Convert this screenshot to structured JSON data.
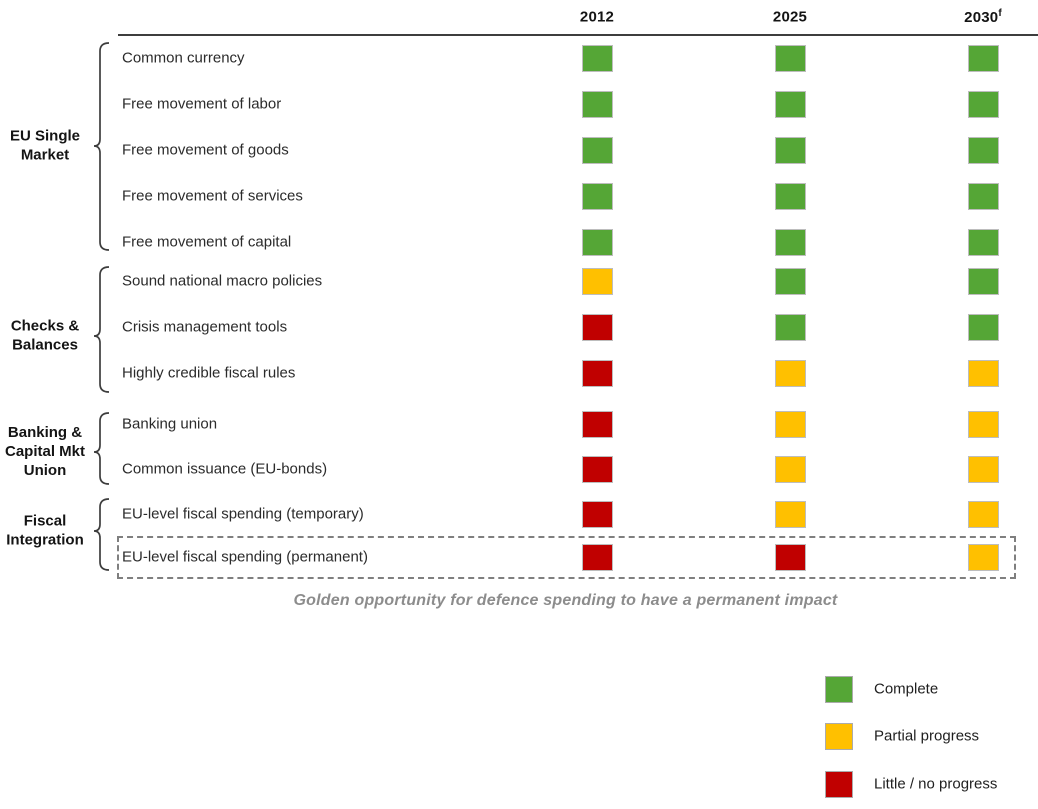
{
  "caption": "Golden opportunity for defence spending to have a permanent impact",
  "chart_data": {
    "type": "heatmap",
    "title": "",
    "columns": [
      {
        "text": "2012",
        "sup": ""
      },
      {
        "text": "2025",
        "sup": ""
      },
      {
        "text": "2030",
        "sup": "f"
      }
    ],
    "groups": [
      {
        "name": "EU Single Market",
        "label_lines": [
          "EU Single",
          "Market"
        ],
        "row_span": [
          0,
          4
        ]
      },
      {
        "name": "Checks & Balances",
        "label_lines": [
          "Checks &",
          "Balances"
        ],
        "row_span": [
          5,
          7
        ]
      },
      {
        "name": "Banking & Capital Mkt Union",
        "label_lines": [
          "Banking &",
          "Capital Mkt",
          "Union"
        ],
        "row_span": [
          8,
          9
        ]
      },
      {
        "name": "Fiscal Integration",
        "label_lines": [
          "Fiscal",
          "Integration"
        ],
        "row_span": [
          10,
          11
        ]
      }
    ],
    "rows": [
      {
        "label": "Common currency",
        "statuses": [
          "complete",
          "complete",
          "complete"
        ]
      },
      {
        "label": "Free movement of labor",
        "statuses": [
          "complete",
          "complete",
          "complete"
        ]
      },
      {
        "label": "Free movement of goods",
        "statuses": [
          "complete",
          "complete",
          "complete"
        ]
      },
      {
        "label": "Free movement of services",
        "statuses": [
          "complete",
          "complete",
          "complete"
        ]
      },
      {
        "label": "Free movement of capital",
        "statuses": [
          "complete",
          "complete",
          "complete"
        ]
      },
      {
        "label": "Sound national macro policies",
        "statuses": [
          "partial",
          "complete",
          "complete"
        ]
      },
      {
        "label": "Crisis management tools",
        "statuses": [
          "none",
          "complete",
          "complete"
        ]
      },
      {
        "label": "Highly credible fiscal rules",
        "statuses": [
          "none",
          "partial",
          "partial"
        ]
      },
      {
        "label": "Banking union",
        "statuses": [
          "none",
          "partial",
          "partial"
        ]
      },
      {
        "label": "Common issuance (EU-bonds)",
        "statuses": [
          "none",
          "partial",
          "partial"
        ]
      },
      {
        "label": "EU-level fiscal spending (temporary)",
        "statuses": [
          "none",
          "partial",
          "partial"
        ]
      },
      {
        "label": "EU-level fiscal spending (permanent)",
        "statuses": [
          "none",
          "none",
          "partial"
        ]
      }
    ],
    "highlighted_row_index": 11,
    "status_legend": [
      {
        "key": "complete",
        "label": "Complete",
        "color": "#55A636"
      },
      {
        "key": "partial",
        "label": "Partial progress",
        "color": "#FFC000"
      },
      {
        "key": "none",
        "label": "Little / no progress",
        "color": "#C00000"
      }
    ],
    "caption": "Golden opportunity for defence spending to have a permanent impact",
    "legend_position": "bottom-right",
    "grid": false
  }
}
